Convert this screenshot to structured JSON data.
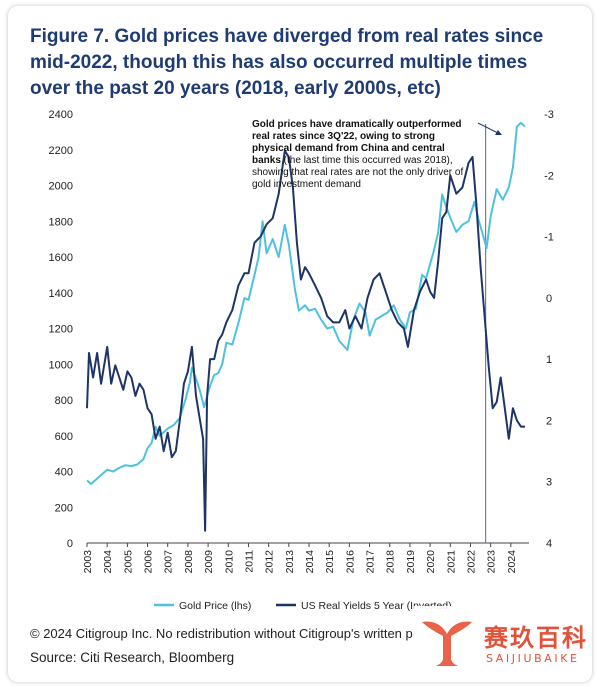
{
  "title": "Figure 7. Gold prices have diverged from real rates since mid-2022, though this has also occurred multiple times over the past 20 years (2018, early 2000s, etc)",
  "copyright": "© 2024 Citigroup Inc. No redistribution without Citigroup's written p",
  "source": "Source: Citi Research, Bloomberg",
  "watermark": {
    "cn": "赛玖百科",
    "en": "SAIJIUBAIKE"
  },
  "colors": {
    "gold": "#4fc1df",
    "yield": "#1f3466",
    "title": "#1f3b73",
    "vline": "#6f7f9f"
  },
  "chart_data": {
    "type": "line",
    "left_ylim": [
      0,
      2400
    ],
    "right_ylim": [
      4,
      -3
    ],
    "right_axis_inverted": true,
    "left_ticks": [
      "0",
      "200",
      "400",
      "600",
      "800",
      "1000",
      "1200",
      "1400",
      "1600",
      "1800",
      "2000",
      "2200",
      "2400"
    ],
    "right_ticks": [
      "4",
      "3",
      "2",
      "1",
      "0",
      "-1",
      "-2",
      "-3"
    ],
    "x_ticks": [
      "2003",
      "2004",
      "2005",
      "2006",
      "2007",
      "2008",
      "2009",
      "2010",
      "2011",
      "2012",
      "2013",
      "2014",
      "2015",
      "2016",
      "2017",
      "2018",
      "2019",
      "2020",
      "2021",
      "2022",
      "2023",
      "2024"
    ],
    "grid": false,
    "legend_position": "bottom",
    "vline_year": 2022.75,
    "annotation": {
      "bold": [
        "Gold prices have dramatically outperformed",
        "real rates since 3Q'22, owing to strong",
        "physical demand from China and central",
        "banks"
      ],
      "normal_suffix": " (the last time this occurred was 2018),",
      "normal": [
        "showing that real rates are not the only driver of",
        "gold investment demand"
      ]
    },
    "series": [
      {
        "name": "Gold Price (lhs)",
        "axis": "left",
        "x": [
          2003.0,
          2003.2,
          2003.5,
          2003.8,
          2004.0,
          2004.3,
          2004.6,
          2004.9,
          2005.2,
          2005.5,
          2005.8,
          2006.0,
          2006.2,
          2006.4,
          2006.6,
          2006.8,
          2007.0,
          2007.3,
          2007.6,
          2007.9,
          2008.1,
          2008.2,
          2008.4,
          2008.6,
          2008.8,
          2008.9,
          2009.1,
          2009.3,
          2009.5,
          2009.7,
          2009.9,
          2010.2,
          2010.5,
          2010.8,
          2011.0,
          2011.3,
          2011.5,
          2011.7,
          2011.9,
          2012.2,
          2012.5,
          2012.8,
          2013.0,
          2013.3,
          2013.5,
          2013.8,
          2014.0,
          2014.3,
          2014.6,
          2014.9,
          2015.2,
          2015.5,
          2015.9,
          2016.2,
          2016.5,
          2016.8,
          2017.0,
          2017.3,
          2017.6,
          2017.9,
          2018.2,
          2018.5,
          2018.8,
          2019.0,
          2019.3,
          2019.6,
          2019.8,
          2020.0,
          2020.2,
          2020.4,
          2020.6,
          2020.8,
          2021.0,
          2021.3,
          2021.6,
          2021.9,
          2022.2,
          2022.4,
          2022.6,
          2022.8,
          2023.0,
          2023.3,
          2023.6,
          2023.9,
          2024.1,
          2024.3,
          2024.5,
          2024.7
        ],
        "values": [
          350,
          330,
          360,
          390,
          410,
          400,
          420,
          435,
          430,
          440,
          470,
          530,
          560,
          650,
          600,
          620,
          640,
          660,
          700,
          810,
          900,
          980,
          920,
          850,
          760,
          800,
          880,
          940,
          950,
          1000,
          1120,
          1110,
          1230,
          1370,
          1360,
          1500,
          1600,
          1800,
          1620,
          1700,
          1600,
          1780,
          1670,
          1420,
          1300,
          1330,
          1300,
          1310,
          1250,
          1200,
          1210,
          1130,
          1080,
          1250,
          1340,
          1290,
          1160,
          1250,
          1270,
          1290,
          1330,
          1250,
          1200,
          1290,
          1310,
          1500,
          1480,
          1560,
          1640,
          1740,
          1950,
          1880,
          1820,
          1740,
          1780,
          1800,
          1910,
          1810,
          1730,
          1650,
          1830,
          1980,
          1920,
          1990,
          2100,
          2330,
          2350,
          2330
        ]
      },
      {
        "name": "US Real Yields 5 Year (Inverted)",
        "axis": "right",
        "x": [
          2003.0,
          2003.1,
          2003.3,
          2003.5,
          2003.7,
          2003.9,
          2004.0,
          2004.2,
          2004.4,
          2004.6,
          2004.8,
          2005.0,
          2005.2,
          2005.4,
          2005.6,
          2005.8,
          2006.0,
          2006.2,
          2006.4,
          2006.6,
          2006.8,
          2007.0,
          2007.2,
          2007.4,
          2007.6,
          2007.8,
          2008.0,
          2008.2,
          2008.4,
          2008.6,
          2008.75,
          2008.85,
          2008.95,
          2009.1,
          2009.3,
          2009.5,
          2009.7,
          2009.9,
          2010.2,
          2010.5,
          2010.8,
          2011.0,
          2011.3,
          2011.6,
          2011.9,
          2012.2,
          2012.5,
          2012.8,
          2013.0,
          2013.2,
          2013.4,
          2013.6,
          2013.8,
          2014.0,
          2014.3,
          2014.6,
          2014.9,
          2015.2,
          2015.5,
          2015.8,
          2016.0,
          2016.3,
          2016.6,
          2016.9,
          2017.2,
          2017.5,
          2017.8,
          2018.1,
          2018.4,
          2018.7,
          2018.9,
          2019.2,
          2019.5,
          2019.8,
          2020.0,
          2020.2,
          2020.4,
          2020.6,
          2020.8,
          2021.0,
          2021.3,
          2021.6,
          2021.9,
          2022.1,
          2022.3,
          2022.5,
          2022.7,
          2022.9,
          2023.1,
          2023.3,
          2023.5,
          2023.7,
          2023.9,
          2024.1,
          2024.3,
          2024.5,
          2024.7
        ],
        "values": [
          1.8,
          0.9,
          1.3,
          0.9,
          1.4,
          1.0,
          0.8,
          1.4,
          1.1,
          1.3,
          1.5,
          1.2,
          1.3,
          1.6,
          1.4,
          1.5,
          1.8,
          1.9,
          2.3,
          2.1,
          2.5,
          2.2,
          2.6,
          2.5,
          2.0,
          1.4,
          1.2,
          0.8,
          1.6,
          2.0,
          2.3,
          3.8,
          1.6,
          1.0,
          1.0,
          0.7,
          0.6,
          0.4,
          0.2,
          -0.2,
          -0.4,
          -0.4,
          -0.9,
          -1.0,
          -1.2,
          -1.3,
          -1.7,
          -2.4,
          -2.3,
          -1.8,
          -0.9,
          -0.3,
          -0.5,
          -0.4,
          -0.2,
          0.0,
          0.3,
          0.4,
          0.4,
          0.2,
          0.5,
          0.3,
          0.5,
          0.0,
          -0.3,
          -0.4,
          -0.1,
          0.2,
          0.4,
          0.5,
          0.8,
          0.2,
          -0.1,
          -0.3,
          -0.1,
          0.0,
          -0.6,
          -1.3,
          -1.4,
          -2.0,
          -1.7,
          -1.8,
          -2.2,
          -2.3,
          -1.5,
          -0.5,
          0.3,
          1.1,
          1.8,
          1.7,
          1.3,
          1.8,
          2.3,
          1.8,
          2.0,
          2.1,
          2.1
        ]
      }
    ]
  }
}
